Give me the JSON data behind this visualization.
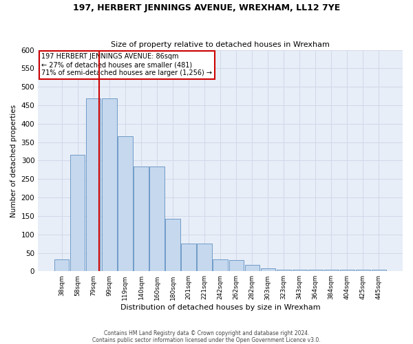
{
  "title": "197, HERBERT JENNINGS AVENUE, WREXHAM, LL12 7YE",
  "subtitle": "Size of property relative to detached houses in Wrexham",
  "xlabel": "Distribution of detached houses by size in Wrexham",
  "ylabel": "Number of detached properties",
  "footer_line1": "Contains HM Land Registry data © Crown copyright and database right 2024.",
  "footer_line2": "Contains public sector information licensed under the Open Government Licence v3.0.",
  "categories": [
    "38sqm",
    "58sqm",
    "79sqm",
    "99sqm",
    "119sqm",
    "140sqm",
    "160sqm",
    "180sqm",
    "201sqm",
    "221sqm",
    "242sqm",
    "262sqm",
    "282sqm",
    "303sqm",
    "323sqm",
    "343sqm",
    "364sqm",
    "384sqm",
    "404sqm",
    "425sqm",
    "445sqm"
  ],
  "values": [
    32,
    316,
    468,
    468,
    367,
    285,
    285,
    143,
    75,
    75,
    32,
    30,
    18,
    8,
    5,
    5,
    5,
    5,
    5,
    5,
    5
  ],
  "bar_color": "#c5d8ee",
  "bar_edge_color": "#6090c0",
  "grid_color": "#d0d8e8",
  "background_color": "#e8eef8",
  "property_line_x": 2.35,
  "annotation_line1": "197 HERBERT JENNINGS AVENUE: 86sqm",
  "annotation_line2": "← 27% of detached houses are smaller (481)",
  "annotation_line3": "71% of semi-detached houses are larger (1,256) →",
  "box_edge_color": "#cc0000",
  "ylim": [
    0,
    600
  ],
  "yticks": [
    0,
    50,
    100,
    150,
    200,
    250,
    300,
    350,
    400,
    450,
    500,
    550,
    600
  ]
}
